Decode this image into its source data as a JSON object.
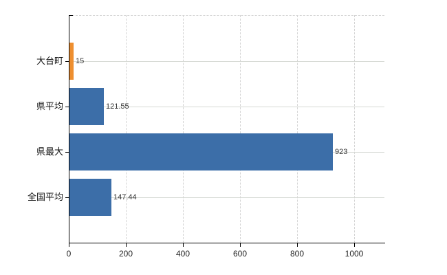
{
  "chart_data": {
    "type": "bar",
    "orientation": "horizontal",
    "categories": [
      "大台町",
      "県平均",
      "県最大",
      "全国平均"
    ],
    "values": [
      15,
      121.55,
      923,
      147.44
    ],
    "value_labels": [
      "15",
      "121.55",
      "923",
      "147.44"
    ],
    "bar_colors": [
      "#ee8f30",
      "#3c6ea8",
      "#3c6ea8",
      "#3c6ea8"
    ],
    "x_tick_labels": [
      "0",
      "200",
      "400",
      "600",
      "800",
      "1000"
    ],
    "x_tick_values": [
      0,
      200,
      400,
      600,
      800,
      1000
    ],
    "xlim": [
      0,
      1106
    ],
    "grid": true,
    "legend": false
  },
  "colors": {
    "bar_default": "#3c6ea8",
    "bar_highlight": "#ee8f30",
    "grid_vertical": "#d4d4d4",
    "grid_horizontal": "#d6d9d4",
    "axis": "#000000",
    "category_text": "#111111",
    "value_text": "#333333",
    "tick_text": "#222222",
    "background": "#ffffff"
  }
}
